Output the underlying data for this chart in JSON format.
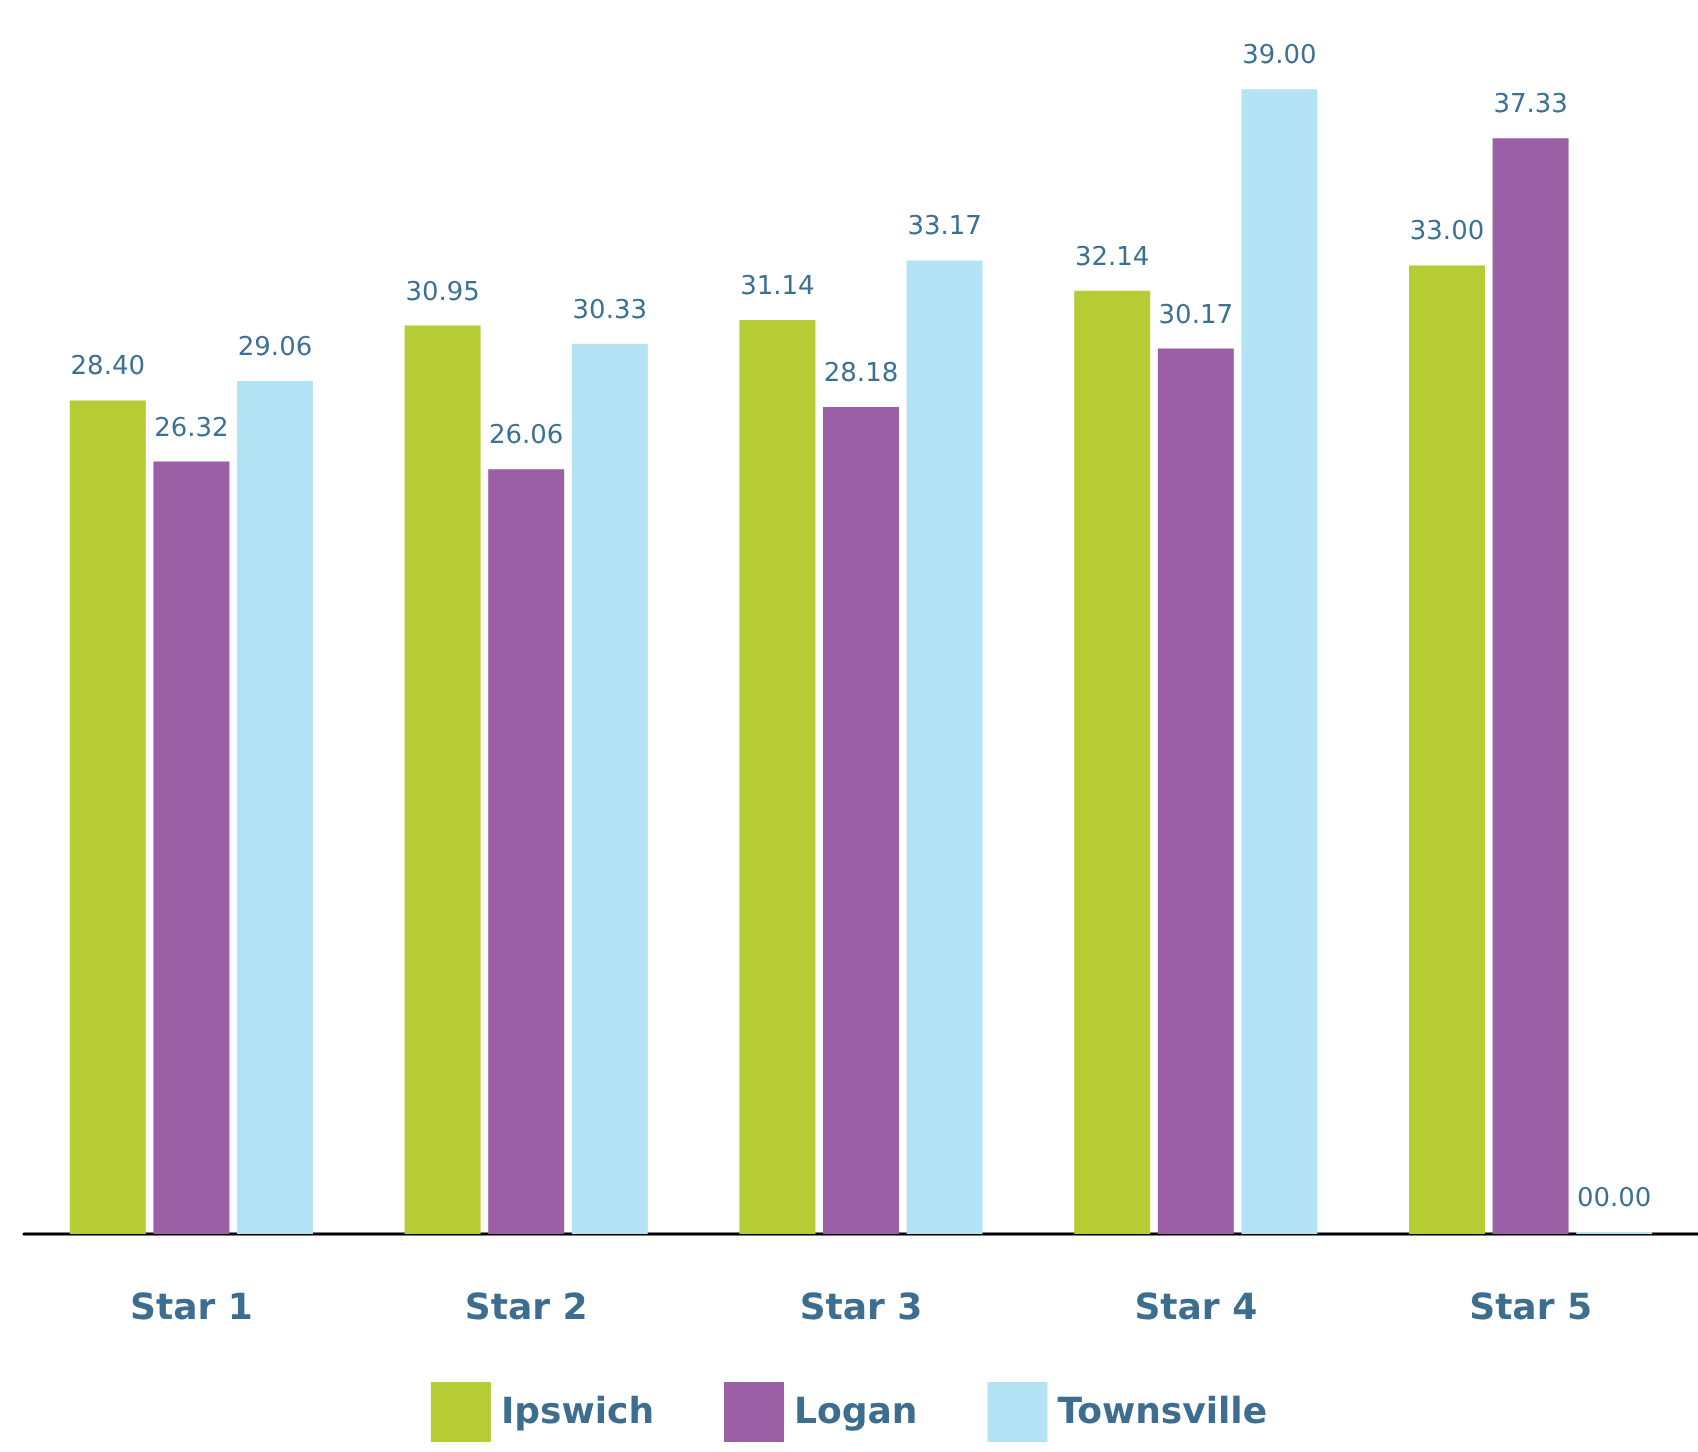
{
  "chart_data": {
    "type": "bar",
    "categories": [
      "Star 1",
      "Star 2",
      "Star 3",
      "Star 4",
      "Star 5"
    ],
    "series": [
      {
        "name": "Ipswich",
        "color": "#b5cc34",
        "values": [
          28.4,
          30.95,
          31.14,
          32.14,
          33.0
        ],
        "value_labels": [
          "28.40",
          "30.95",
          "31.14",
          "32.14",
          "33.00"
        ]
      },
      {
        "name": "Logan",
        "color": "#9b5fa6",
        "values": [
          26.32,
          26.06,
          28.18,
          30.17,
          37.33
        ],
        "value_labels": [
          "26.32",
          "26.06",
          "28.18",
          "30.17",
          "37.33"
        ]
      },
      {
        "name": "Townsville",
        "color": "#b3e3f5",
        "values": [
          29.06,
          30.33,
          33.17,
          39.0,
          0
        ],
        "value_labels": [
          "29.06",
          "30.33",
          "33.17",
          "39.00",
          "00.00"
        ]
      }
    ],
    "legend": "bottom"
  }
}
